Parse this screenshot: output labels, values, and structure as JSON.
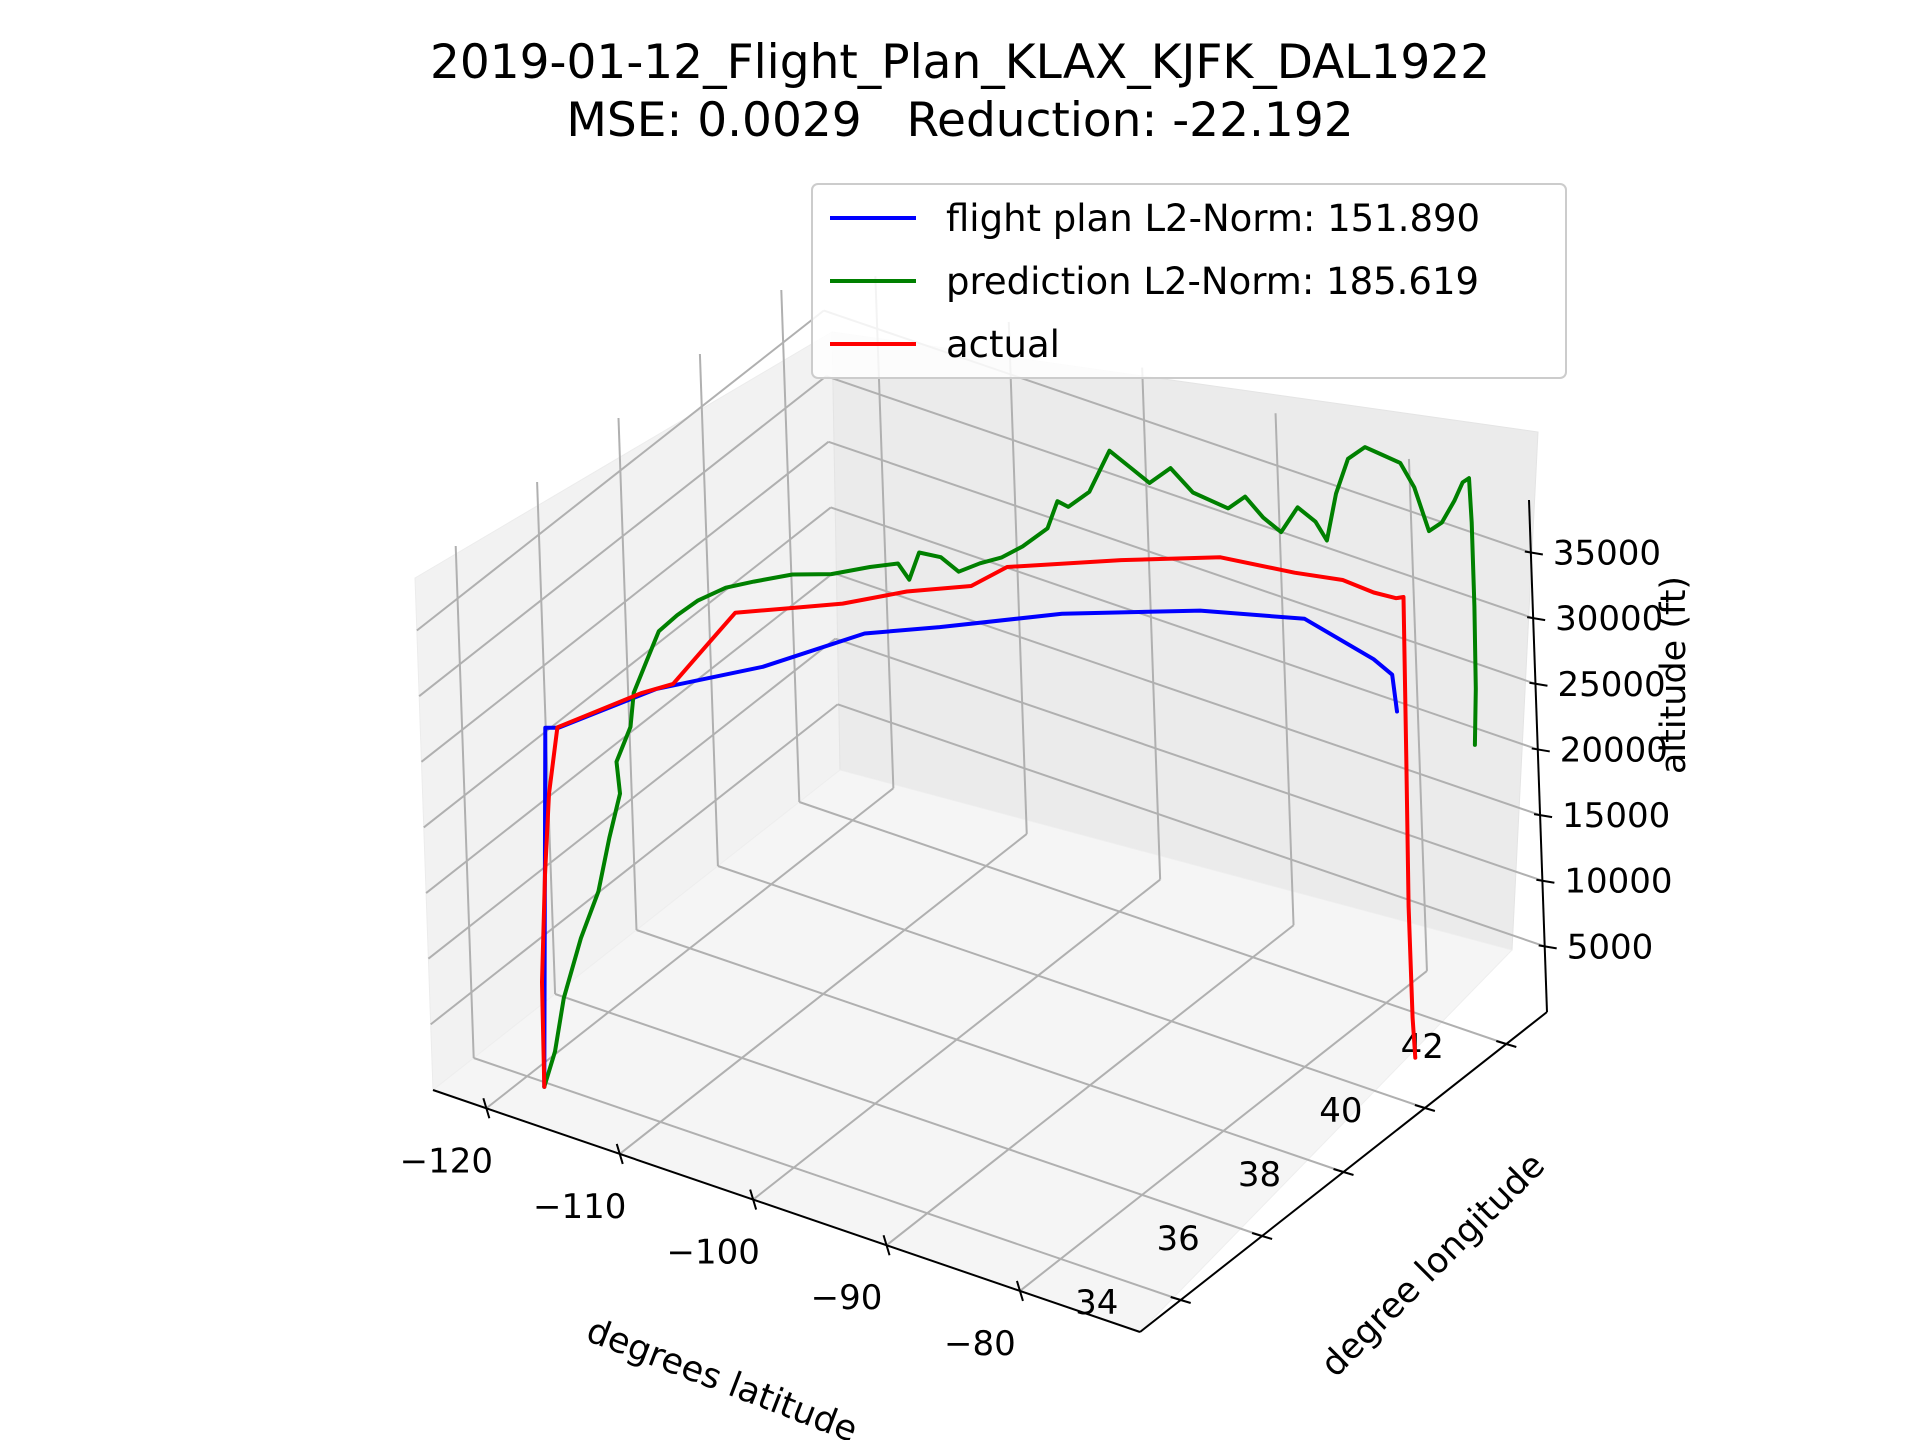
{
  "chart_data": {
    "type": "line",
    "title": "2019-01-12_Flight_Plan_KLAX_KJFK_DAL1922",
    "subtitle": "MSE: 0.0029   Reduction: -22.192",
    "xlabel": "degrees latitude",
    "ylabel": "degree longitude",
    "zlabel": "altitude (ft)",
    "x_ticks": [
      "−120",
      "−110",
      "−100",
      "−90",
      "−80"
    ],
    "y_ticks": [
      "34",
      "36",
      "38",
      "40",
      "42"
    ],
    "z_ticks": [
      "5000",
      "10000",
      "15000",
      "20000",
      "25000",
      "30000",
      "35000"
    ],
    "xlim": [
      -124,
      -71
    ],
    "ylim": [
      33,
      43
    ],
    "zlim": [
      0,
      39000
    ],
    "grid": true,
    "legend_position": "top-right",
    "series": [
      {
        "name": "flight plan L2-Norm: 151.890",
        "color": "#0000ff",
        "points": [
          [
            -118.4,
            33.9,
            0
          ],
          [
            -118.0,
            34.1,
            27000
          ],
          [
            -117.3,
            34.2,
            27000
          ],
          [
            -113.0,
            35.2,
            29000
          ],
          [
            -108.0,
            36.2,
            30000
          ],
          [
            -104.0,
            37.4,
            31000
          ],
          [
            -100.5,
            38.1,
            31000
          ],
          [
            -95.0,
            39.3,
            31000
          ],
          [
            -88.0,
            40.4,
            31000
          ],
          [
            -82.0,
            41.0,
            31000
          ],
          [
            -77.5,
            41.2,
            29000
          ],
          [
            -75.5,
            41.0,
            29000
          ],
          [
            -74.6,
            40.8,
            27000
          ]
        ]
      },
      {
        "name": "prediction L2-Norm: 185.619",
        "color": "#008000",
        "points": [
          [
            -118.4,
            33.9,
            0
          ],
          [
            -117.5,
            33.9,
            3000
          ],
          [
            -117.0,
            34.0,
            7000
          ],
          [
            -116.5,
            34.3,
            11000
          ],
          [
            -116.0,
            34.6,
            14000
          ],
          [
            -116.3,
            35.0,
            17000
          ],
          [
            -116.0,
            35.2,
            20000
          ],
          [
            -116.5,
            35.3,
            22000
          ],
          [
            -116.3,
            35.6,
            24000
          ],
          [
            -116.6,
            35.8,
            26000
          ],
          [
            -116.2,
            36.0,
            28000
          ],
          [
            -115.8,
            36.2,
            30000
          ],
          [
            -115.0,
            36.4,
            31000
          ],
          [
            -114.0,
            36.6,
            32000
          ],
          [
            -112.5,
            36.8,
            33000
          ],
          [
            -111.0,
            37.0,
            33500
          ],
          [
            -109.0,
            37.3,
            34000
          ],
          [
            -107.0,
            37.6,
            34000
          ],
          [
            -105.0,
            37.9,
            34500
          ],
          [
            -103.5,
            38.1,
            34800
          ],
          [
            -103.0,
            38.2,
            33500
          ],
          [
            -102.5,
            38.3,
            35500
          ],
          [
            -101.5,
            38.5,
            35000
          ],
          [
            -100.5,
            38.6,
            34000
          ],
          [
            -99.5,
            38.8,
            34500
          ],
          [
            -98.5,
            39.0,
            34800
          ],
          [
            -97.5,
            39.2,
            35500
          ],
          [
            -96.5,
            39.5,
            36500
          ],
          [
            -96.0,
            39.6,
            38500
          ],
          [
            -95.5,
            39.7,
            38000
          ],
          [
            -94.5,
            39.9,
            39000
          ],
          [
            -93.5,
            40.1,
            42000
          ],
          [
            -92.5,
            40.3,
            40500
          ],
          [
            -91.5,
            40.4,
            39500
          ],
          [
            -90.5,
            40.6,
            40500
          ],
          [
            -89.5,
            40.8,
            38500
          ],
          [
            -88.5,
            40.9,
            38000
          ],
          [
            -87.5,
            41.0,
            37500
          ],
          [
            -86.5,
            41.1,
            38500
          ],
          [
            -85.5,
            41.2,
            37000
          ],
          [
            -84.5,
            41.3,
            36000
          ],
          [
            -83.5,
            41.4,
            38000
          ],
          [
            -82.5,
            41.5,
            37000
          ],
          [
            -82.0,
            41.6,
            35500
          ],
          [
            -81.5,
            41.7,
            39000
          ],
          [
            -80.5,
            41.7,
            42000
          ],
          [
            -79.5,
            41.8,
            43000
          ],
          [
            -78.5,
            41.9,
            42500
          ],
          [
            -77.5,
            42.0,
            42000
          ],
          [
            -76.5,
            42.0,
            40500
          ],
          [
            -75.5,
            42.0,
            37500
          ],
          [
            -74.5,
            42.0,
            38500
          ],
          [
            -73.5,
            42.0,
            40500
          ],
          [
            -72.5,
            41.9,
            42500
          ],
          [
            -72.0,
            41.9,
            43000
          ],
          [
            -71.6,
            41.8,
            40000
          ],
          [
            -71.3,
            41.7,
            34000
          ],
          [
            -71.1,
            41.6,
            28000
          ],
          [
            -71.0,
            41.5,
            24000
          ]
        ]
      },
      {
        "name": "actual",
        "color": "#ff0000",
        "points": [
          [
            -118.4,
            33.9,
            0
          ],
          [
            -118.3,
            33.9,
            8000
          ],
          [
            -118.1,
            34.0,
            16000
          ],
          [
            -117.9,
            34.1,
            22000
          ],
          [
            -117.4,
            34.2,
            27000
          ],
          [
            -113.5,
            35.0,
            29000
          ],
          [
            -112.0,
            35.3,
            29500
          ],
          [
            -110.5,
            35.6,
            32000
          ],
          [
            -109.0,
            35.9,
            34500
          ],
          [
            -106.5,
            36.4,
            34500
          ],
          [
            -104.0,
            36.9,
            34500
          ],
          [
            -101.0,
            37.5,
            35000
          ],
          [
            -98.0,
            38.1,
            35000
          ],
          [
            -96.5,
            38.5,
            36000
          ],
          [
            -91.0,
            39.5,
            36000
          ],
          [
            -86.0,
            40.3,
            36000
          ],
          [
            -82.0,
            40.8,
            35000
          ],
          [
            -79.0,
            41.0,
            35000
          ],
          [
            -77.0,
            41.1,
            34500
          ],
          [
            -75.0,
            41.0,
            35000
          ],
          [
            -73.8,
            40.8,
            36000
          ],
          [
            -73.7,
            40.7,
            24000
          ],
          [
            -73.6,
            40.6,
            13000
          ],
          [
            -73.6,
            40.6,
            4500
          ],
          [
            -73.5,
            40.6,
            1500
          ]
        ]
      }
    ]
  }
}
